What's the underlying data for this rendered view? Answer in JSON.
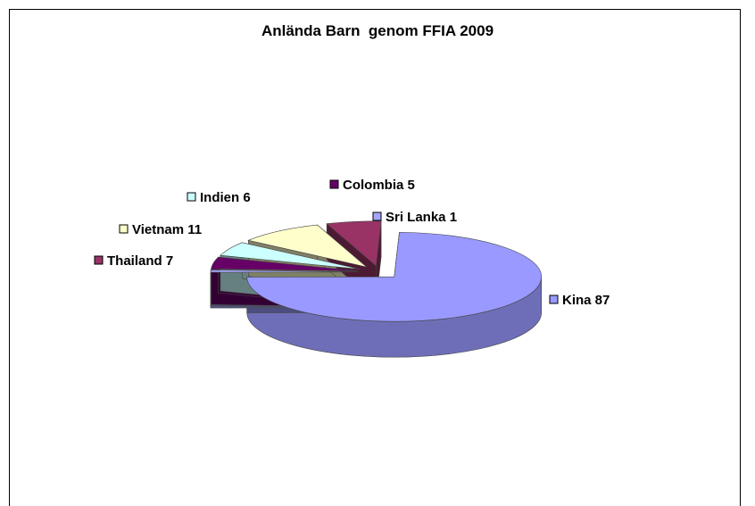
{
  "chart_data": {
    "type": "pie",
    "style": "3d-exploded",
    "title": "Anlända Barn  genom FFIA 2009",
    "slices": [
      {
        "label": "Kina 87",
        "category": "Kina",
        "value": 87,
        "color": "#9999ff"
      },
      {
        "label": "Sri Lanka 1",
        "category": "Sri Lanka",
        "value": 1,
        "color": "#a6a6ff"
      },
      {
        "label": "Colombia 5",
        "category": "Colombia",
        "value": 5,
        "color": "#660066"
      },
      {
        "label": "Indien 6",
        "category": "Indien",
        "value": 6,
        "color": "#ccffff"
      },
      {
        "label": "Vietnam 11",
        "category": "Vietnam",
        "value": 11,
        "color": "#ffffcc"
      },
      {
        "label": "Thailand 7",
        "category": "Thailand",
        "value": 7,
        "color": "#993366"
      }
    ],
    "legend": "none",
    "data_labels": "outside"
  }
}
